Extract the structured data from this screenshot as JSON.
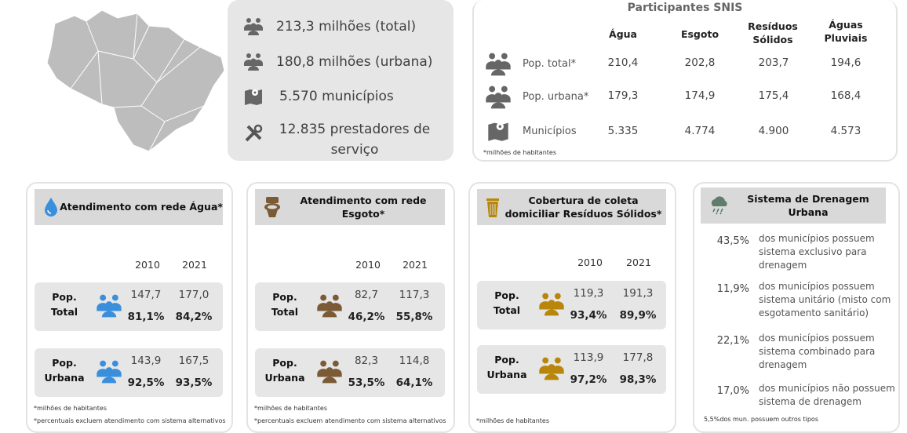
{
  "summary": {
    "items": [
      {
        "icon": "people-icon",
        "text": "213,3 milhões (total)"
      },
      {
        "icon": "people-icon",
        "text": "180,8 milhões (urbana)"
      },
      {
        "icon": "map-pin-icon",
        "text": "5.570 municípios"
      },
      {
        "icon": "tools-icon",
        "text": "12.835 prestadores de serviço"
      }
    ]
  },
  "snis": {
    "title": "Participantes SNIS",
    "columns": [
      "Água",
      "Esgoto",
      "Resíduos Sólidos",
      "Águas Pluviais"
    ],
    "rows": [
      {
        "label": "Pop. total*",
        "values": [
          "210,4",
          "202,8",
          "203,7",
          "194,6"
        ]
      },
      {
        "label": "Pop. urbana*",
        "values": [
          "179,3",
          "174,9",
          "175,4",
          "168,4"
        ]
      },
      {
        "label": "Municípios",
        "values": [
          "5.335",
          "4.774",
          "4.900",
          "4.573"
        ]
      }
    ],
    "footnote": "*milhões de habitantes"
  },
  "cards": [
    {
      "title": "Atendimento com rede Água*",
      "icon": "water-drop-icon",
      "color": "#3a8fdc",
      "years": [
        "2010",
        "2021"
      ],
      "rows": [
        {
          "label": "Pop. Total",
          "values": [
            "147,7",
            "177,0"
          ],
          "pct": [
            "81,1%",
            "84,2%"
          ]
        },
        {
          "label": "Pop. Urbana",
          "values": [
            "143,9",
            "167,5"
          ],
          "pct": [
            "92,5%",
            "93,5%"
          ]
        }
      ],
      "foot1": "*milhões de habitantes",
      "foot2": "*percentuais excluem atendimento com sistema alternativos"
    },
    {
      "title": "Atendimento com rede Esgoto*",
      "icon": "toilet-icon",
      "color": "#7b5a36",
      "years": [
        "2010",
        "2021"
      ],
      "rows": [
        {
          "label": "Pop. Total",
          "values": [
            "82,7",
            "117,3"
          ],
          "pct": [
            "46,2%",
            "55,8%"
          ]
        },
        {
          "label": "Pop. Urbana",
          "values": [
            "82,3",
            "114,8"
          ],
          "pct": [
            "53,5%",
            "64,1%"
          ]
        }
      ],
      "foot1": "*milhões de habitantes",
      "foot2": "*percentuais excluem atendimento com sistema alternativos"
    },
    {
      "title": "Cobertura de coleta domiciliar Resíduos Sólidos*",
      "icon": "trash-bin-icon",
      "color": "#b8860b",
      "years": [
        "2010",
        "2021"
      ],
      "rows": [
        {
          "label": "Pop. Total",
          "values": [
            "119,3",
            "191,3"
          ],
          "pct": [
            "93,4%",
            "89,9%"
          ]
        },
        {
          "label": "Pop. Urbana",
          "values": [
            "113,9",
            "177,8"
          ],
          "pct": [
            "97,2%",
            "98,3%"
          ]
        }
      ],
      "foot1": "*milhões de habitantes"
    }
  ],
  "drainage": {
    "title": "Sistema de Drenagem Urbana",
    "icon": "rain-cloud-icon",
    "items": [
      {
        "pct": "43,5%",
        "text": "dos municípios possuem sistema exclusivo para drenagem"
      },
      {
        "pct": "11,9%",
        "text": "dos municípios possuem sistema unitário (misto com esgotamento sanitário)"
      },
      {
        "pct": "22,1%",
        "text": "dos municípios possuem sistema combinado para drenagem"
      },
      {
        "pct": "17,0%",
        "text": "dos municípios não possuem sistema de drenagem"
      }
    ],
    "footnote": "5,5%dos mun. possuem outros tipos"
  }
}
